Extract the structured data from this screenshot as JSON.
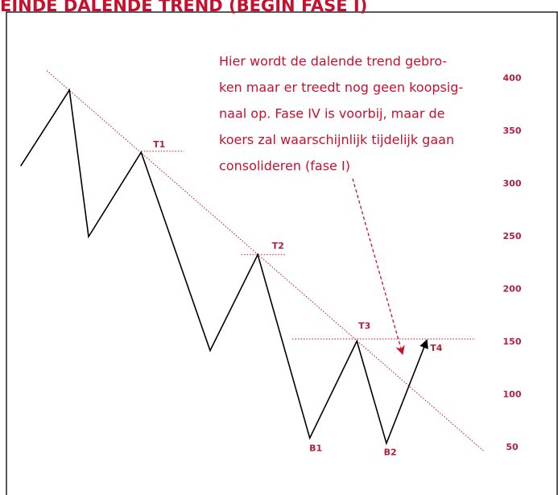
{
  "chart_data": {
    "type": "line",
    "title": "EINDE DALENDE TREND (BEGIN FASE I)",
    "x": [
      2.6,
      11.5,
      15,
      24.6,
      37.2,
      45.9,
      55.4,
      64,
      69.4,
      76.8
    ],
    "values": [
      317,
      389,
      250,
      330,
      142,
      233,
      59,
      151,
      54,
      152
    ],
    "color": "#000000",
    "xlim": [
      0,
      100
    ],
    "ylim": [
      5,
      463
    ],
    "yticks": [
      400,
      350,
      300,
      250,
      200,
      150,
      100,
      50
    ],
    "reference_lines": [
      {
        "x": [
          7.35,
          87.1
        ],
        "y": [
          407.5,
          47
        ],
        "color": "#c8102e"
      },
      {
        "x": [
          24.6,
          32.4
        ],
        "y": [
          331,
          331
        ],
        "color": "#c8102e"
      },
      {
        "x": [
          42.9,
          51
        ],
        "y": [
          233,
          233
        ],
        "color": "#c8102e"
      },
      {
        "x": [
          52.2,
          85.6
        ],
        "y": [
          153,
          153
        ],
        "color": "#c8102e"
      }
    ],
    "annotations": [
      {
        "text": "T1",
        "x": 27.9,
        "y": 337
      },
      {
        "text": "T2",
        "x": 49.6,
        "y": 241
      },
      {
        "text": "T3",
        "x": 65.4,
        "y": 165
      },
      {
        "text": "T4",
        "x": 78.5,
        "y": 144
      },
      {
        "text": "B1",
        "x": 56.5,
        "y": 49
      },
      {
        "text": "B2",
        "x": 70.1,
        "y": 45
      }
    ],
    "note": [
      "Hier wordt de dalende trend gebro-",
      "ken maar er treedt nog geen koopsig-",
      "naal op. Fase IV is voorbij, maar de",
      "koers zal waarschijnlijk tijdelijk gaan",
      "consolideren (fase I)"
    ]
  }
}
